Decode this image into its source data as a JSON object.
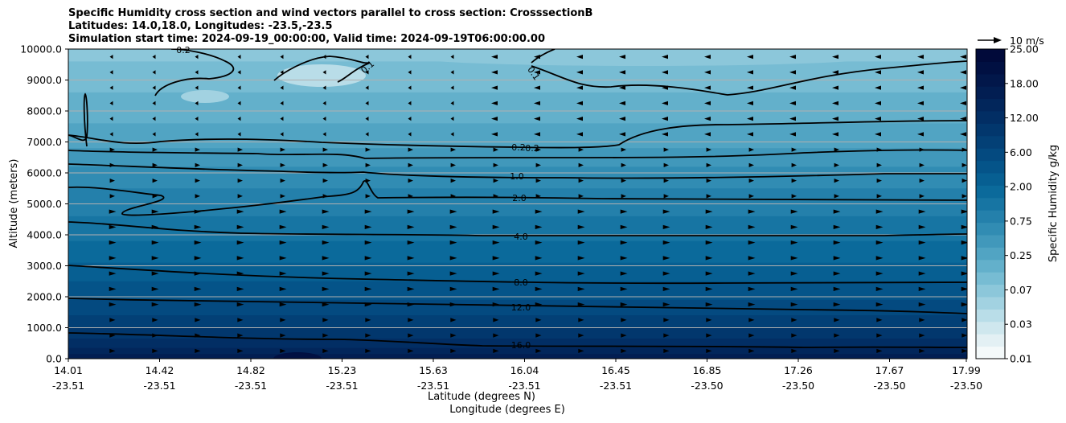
{
  "title_lines": [
    "Specific Humidity cross section and wind vectors parallel to cross section: CrosssectionB",
    "Latitudes: 14.0,18.0, Longitudes: -23.5,-23.5",
    "Simulation start time: 2024-09-19_00:00:00, Valid time: 2024-09-19T06:00:00.00"
  ],
  "chart_data": {
    "type": "heatmap",
    "title": "Specific Humidity cross section and wind vectors parallel to cross section: CrosssectionB",
    "xlabel": "Latitude (degrees N)",
    "xlabel2": "Longitude (degrees E)",
    "ylabel": "Altitude (meters)",
    "ylim": [
      0,
      10000
    ],
    "y_ticks": [
      "0.0",
      "1000.0",
      "2000.0",
      "3000.0",
      "4000.0",
      "5000.0",
      "6000.0",
      "7000.0",
      "8000.0",
      "9000.0",
      "10000.0"
    ],
    "x_ticks": [
      {
        "lat": "14.01",
        "lon": "-23.51"
      },
      {
        "lat": "14.42",
        "lon": "-23.51"
      },
      {
        "lat": "14.82",
        "lon": "-23.51"
      },
      {
        "lat": "15.23",
        "lon": "-23.51"
      },
      {
        "lat": "15.63",
        "lon": "-23.51"
      },
      {
        "lat": "16.04",
        "lon": "-23.51"
      },
      {
        "lat": "16.45",
        "lon": "-23.51"
      },
      {
        "lat": "16.85",
        "lon": "-23.50"
      },
      {
        "lat": "17.26",
        "lon": "-23.50"
      },
      {
        "lat": "17.67",
        "lon": "-23.50"
      },
      {
        "lat": "17.99",
        "lon": "-23.50"
      }
    ],
    "grid": "horizontal",
    "colorbar": {
      "label": "Specific Humidity g/kg",
      "ticks": [
        "0.01",
        "0.03",
        "0.07",
        "0.25",
        "0.75",
        "2.00",
        "6.00",
        "12.00",
        "18.00",
        "25.00"
      ],
      "colors": [
        "#f4f9fa",
        "#e3f0f4",
        "#cfe7ee",
        "#b9dde8",
        "#a2d2e1",
        "#8cc7da",
        "#77bcd3",
        "#63b0cb",
        "#51a4c3",
        "#4198bb",
        "#318cb3",
        "#2480ab",
        "#1775a3",
        "#0b6a9b",
        "#075f92",
        "#055489",
        "#044a80",
        "#034076",
        "#02376d",
        "#022e64",
        "#02265b",
        "#021e52",
        "#02174a",
        "#011042",
        "#010a3a"
      ]
    },
    "wind_reference": {
      "label": "10 m/s"
    },
    "contours": [
      {
        "level": 0.1,
        "labels": [
          "0.1",
          "0.1"
        ]
      },
      {
        "level": 0.2,
        "labels": [
          "0.2",
          "0.2",
          "0.2"
        ]
      },
      {
        "level": 1.0,
        "labels": [
          "1.0"
        ]
      },
      {
        "level": 2.0,
        "labels": [
          "2.0"
        ]
      },
      {
        "level": 4.0,
        "labels": [
          "4.0"
        ]
      },
      {
        "level": 8.0,
        "labels": [
          "8.0"
        ]
      },
      {
        "level": 12.0,
        "labels": [
          "12.0"
        ]
      },
      {
        "level": 16.0,
        "labels": [
          "16.0"
        ]
      }
    ]
  }
}
